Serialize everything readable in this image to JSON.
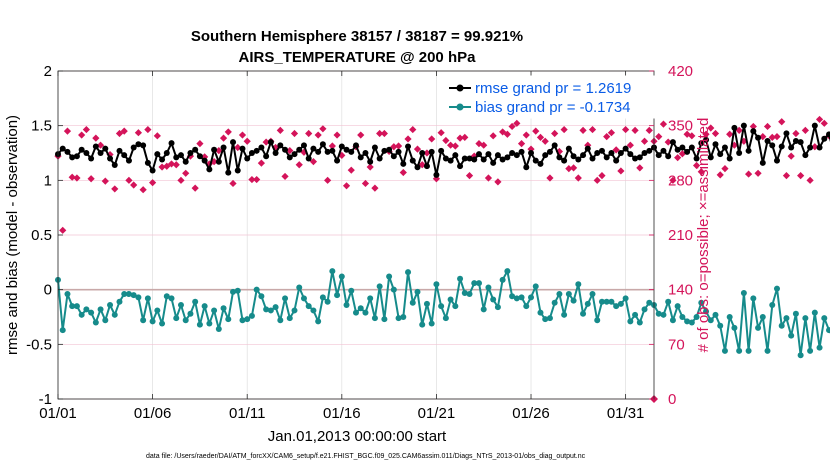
{
  "chart_data": {
    "type": "line",
    "title_line1": "Southern Hemisphere 38157 / 38187 = 99.921%",
    "title_line2": "AIRS_TEMPERATURE @ 200 hPa",
    "xlabel": "Jan.01,2013 00:00:00 start",
    "ylabel": "rmse and bias (model - observation)",
    "ylabel_right": "# of obs: o=possible; ×=assimilated",
    "footnote": "data file: /Users/raeder/DAI/ATM_forcXX/CAM6_setup/f.e21.FHIST_BGC.f09_025.CAM6assim.011/Diags_NTrS_2013-01/obs_diag_output.nc",
    "xlim": [
      0,
      31.5
    ],
    "ylim": [
      -1,
      2
    ],
    "ylim_right": [
      0,
      420
    ],
    "x_ticks": [
      0,
      5,
      10,
      15,
      20,
      25,
      30
    ],
    "x_tick_labels": [
      "01/01",
      "01/06",
      "01/11",
      "01/16",
      "01/21",
      "01/26",
      "01/31"
    ],
    "y_ticks": [
      -1,
      -0.5,
      0,
      0.5,
      1,
      1.5,
      2
    ],
    "y_tick_labels": [
      "-1",
      "-0.5",
      "0",
      "0.5",
      "1",
      "1.5",
      "2"
    ],
    "y2_ticks": [
      0,
      70,
      140,
      210,
      280,
      350,
      420
    ],
    "y2_tick_labels": [
      "0",
      "70",
      "140",
      "210",
      "280",
      "350",
      "420"
    ],
    "zero_line": 0,
    "colors": {
      "rmse": "#000000",
      "bias": "#168b8b",
      "obs": "#d4145a",
      "grid_right": "#f2c4d4",
      "grid_left": "#dedede",
      "zero": "#c8a8a8",
      "legend_text": "#0a5ce6"
    },
    "series": [
      {
        "name": "rmse grand pr = 1.2619",
        "axis": "left",
        "x_step": 0.25,
        "values": [
          1.24,
          1.29,
          1.26,
          1.21,
          1.22,
          1.28,
          1.25,
          1.2,
          1.31,
          1.25,
          1.29,
          1.2,
          1.14,
          1.27,
          1.23,
          1.18,
          1.3,
          1.33,
          1.32,
          1.16,
          1.09,
          1.24,
          1.19,
          1.25,
          1.34,
          1.21,
          1.23,
          1.17,
          1.25,
          1.28,
          1.22,
          1.18,
          1.1,
          1.28,
          1.17,
          1.3,
          1.07,
          1.35,
          1.09,
          1.29,
          1.2,
          1.25,
          1.27,
          1.3,
          1.22,
          1.35,
          1.25,
          1.32,
          1.28,
          1.21,
          1.24,
          1.28,
          1.32,
          1.2,
          1.29,
          1.26,
          1.33,
          1.26,
          1.27,
          1.18,
          1.31,
          1.28,
          1.26,
          1.32,
          1.21,
          1.25,
          1.17,
          1.3,
          1.2,
          1.27,
          1.28,
          1.22,
          1.26,
          1.15,
          1.31,
          1.18,
          1.12,
          1.25,
          1.13,
          1.26,
          1.05,
          1.27,
          1.2,
          1.18,
          1.23,
          1.13,
          1.2,
          1.2,
          1.19,
          1.24,
          1.19,
          1.24,
          1.16,
          1.23,
          1.19,
          1.21,
          1.25,
          1.23,
          1.26,
          1.12,
          1.25,
          1.18,
          1.15,
          1.23,
          1.26,
          1.32,
          1.21,
          1.18,
          1.29,
          1.22,
          1.19,
          1.23,
          1.29,
          1.2,
          1.25,
          1.27,
          1.21,
          1.25,
          1.18,
          1.25,
          1.29,
          1.24,
          1.2,
          1.21,
          1.25,
          1.27,
          1.3,
          1.23,
          1.27,
          1.22,
          1.35,
          1.28,
          1.3,
          1.26,
          1.3,
          1.2,
          1.34,
          1.37,
          1.21,
          1.33,
          1.24,
          1.3,
          1.2,
          1.48,
          1.25,
          1.5,
          1.27,
          1.45,
          1.39,
          1.16,
          1.36,
          1.32,
          1.18,
          1.31,
          1.43,
          1.3,
          1.36,
          1.35,
          1.23,
          1.3,
          1.5,
          1.3,
          1.38,
          1.42,
          1.26,
          1.3,
          1.24,
          1.2,
          1.34,
          1.32,
          1.27,
          1.23,
          1.18,
          1.32,
          1.29,
          1.2,
          1.24,
          1.3,
          1.23,
          1.37,
          1.43,
          1.33,
          1.43,
          1.34,
          1.25,
          1.26,
          1.22,
          1.26
        ]
      },
      {
        "name": "bias grand pr = -0.1734",
        "axis": "left",
        "x_step": 0.25,
        "values": [
          0.09,
          -0.37,
          -0.04,
          -0.15,
          -0.15,
          -0.23,
          -0.18,
          -0.21,
          -0.3,
          -0.18,
          -0.28,
          -0.14,
          -0.23,
          -0.11,
          -0.04,
          -0.04,
          -0.05,
          -0.07,
          -0.28,
          -0.08,
          -0.29,
          -0.19,
          -0.31,
          -0.06,
          -0.08,
          -0.26,
          -0.14,
          -0.28,
          -0.22,
          -0.11,
          -0.32,
          -0.15,
          -0.31,
          -0.19,
          -0.36,
          -0.17,
          -0.27,
          -0.02,
          -0.01,
          -0.28,
          -0.27,
          -0.24,
          0.0,
          -0.06,
          -0.18,
          -0.19,
          -0.16,
          -0.28,
          -0.08,
          -0.26,
          -0.19,
          0.02,
          -0.08,
          -0.15,
          -0.19,
          -0.29,
          -0.07,
          -0.11,
          0.17,
          -0.05,
          0.12,
          -0.14,
          -0.01,
          -0.21,
          -0.17,
          -0.21,
          -0.08,
          -0.26,
          0.03,
          -0.27,
          0.12,
          0.0,
          -0.26,
          -0.25,
          0.16,
          -0.12,
          -0.02,
          -0.32,
          -0.13,
          -0.31,
          0.05,
          -0.15,
          -0.26,
          -0.09,
          -0.15,
          0.1,
          -0.03,
          -0.04,
          0.06,
          0.06,
          -0.18,
          0.02,
          -0.09,
          -0.16,
          0.09,
          0.17,
          -0.06,
          -0.08,
          -0.07,
          -0.15,
          -0.07,
          0.03,
          -0.21,
          -0.27,
          -0.26,
          -0.12,
          -0.04,
          -0.23,
          -0.04,
          -0.1,
          0.05,
          -0.22,
          -0.13,
          -0.04,
          -0.28,
          -0.11,
          -0.11,
          -0.11,
          -0.15,
          -0.13,
          -0.08,
          -0.29,
          -0.23,
          -0.3,
          -0.18,
          -0.12,
          -0.14,
          -0.22,
          -0.23,
          -0.11,
          -0.28,
          -0.15,
          -0.25,
          -0.29,
          -0.3,
          -0.25,
          -0.12,
          -0.2,
          -0.28,
          -0.23,
          -0.33,
          -0.56,
          -0.25,
          -0.35,
          -0.56,
          -0.03,
          -0.56,
          -0.08,
          -0.35,
          -0.25,
          -0.56,
          -0.14,
          0.01,
          -0.33,
          -0.26,
          -0.42,
          -0.22,
          -0.6,
          -0.26,
          -0.56,
          -0.21,
          -0.53,
          -0.26,
          -0.37,
          -0.44,
          -0.33,
          -0.45,
          -0.29,
          -0.18,
          -0.36,
          -0.05,
          -0.32,
          -0.3,
          -0.3,
          -0.15,
          -0.37,
          -0.44,
          -0.32,
          -0.49,
          -0.38,
          -0.69,
          -0.29,
          -0.69,
          -0.28,
          -0.36,
          -0.21,
          -0.35,
          -0.39,
          -0.41,
          -0.27,
          -0.39,
          -0.33,
          -0.28,
          -0.33,
          -0.26,
          -0.25,
          -0.38,
          -0.31
        ]
      },
      {
        "name": "# obs assimilated",
        "axis": "right",
        "x_step": 0.25,
        "values": [
          311,
          216,
          343,
          284,
          283,
          338,
          345,
          282,
          334,
          325,
          279,
          313,
          269,
          340,
          343,
          280,
          274,
          341,
          268,
          345,
          277,
          337,
          297,
          298,
          301,
          300,
          280,
          289,
          311,
          270,
          327,
          310,
          301,
          304,
          318,
          334,
          342,
          276,
          322,
          338,
          330,
          281,
          281,
          302,
          329,
          330,
          322,
          344,
          285,
          318,
          340,
          300,
          316,
          340,
          304,
          338,
          346,
          280,
          324,
          338,
          312,
          273,
          293,
          323,
          338,
          276,
          297,
          270,
          340,
          340,
          317,
          323,
          324,
          290,
          333,
          345,
          320,
          300,
          315,
          333,
          282,
          341,
          331,
          325,
          324,
          334,
          335,
          286,
          311,
          327,
          325,
          283,
          337,
          278,
          342,
          339,
          349,
          353,
          327,
          338,
          320,
          343,
          335,
          330,
          283,
          340,
          317,
          345,
          295,
          296,
          283,
          344,
          325,
          345,
          280,
          286,
          336,
          341,
          319,
          292,
          345,
          325,
          344,
          296,
          330,
          344,
          330,
          336,
          352,
          329,
          280,
          309,
          314,
          339,
          337,
          299,
          291,
          339,
          347,
          340,
          287,
          295,
          339,
          325,
          344,
          330,
          288,
          349,
          289,
          336,
          349,
          335,
          336,
          355,
          286,
          311,
          340,
          286,
          344,
          280,
          323,
          358,
          353,
          337,
          286,
          339,
          295,
          345,
          330,
          337,
          293,
          280,
          337,
          285,
          328,
          301,
          312,
          334,
          330,
          307,
          261,
          311,
          285,
          303,
          304,
          338,
          337,
          347,
          341,
          278,
          303,
          277,
          345,
          336,
          281,
          277,
          340,
          350,
          281
        ]
      }
    ]
  }
}
